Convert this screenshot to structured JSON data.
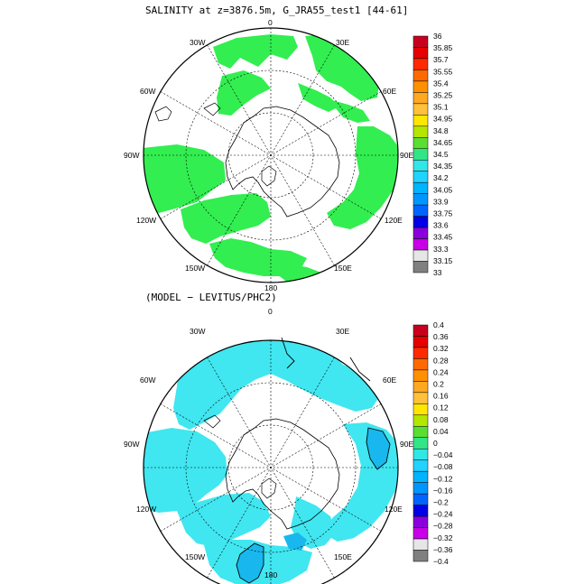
{
  "panels": [
    {
      "title": "SALINITY at z=3876.5m, G_JRA55_test1 [44-61]",
      "lon_labels": {
        "top": "0",
        "top_right": "30E",
        "right_upper": "60E",
        "right": "90E",
        "bottom_right": "120E",
        "bottom_right2": "150E",
        "bottom": "180",
        "bottom_left2": "150W",
        "bottom_left": "120W",
        "left": "90W",
        "left_upper": "60W",
        "top_left": "30W"
      },
      "colorbar": {
        "labels": [
          "36",
          "35.85",
          "35.7",
          "35.55",
          "35.4",
          "35.25",
          "35.1",
          "34.95",
          "34.8",
          "34.65",
          "34.5",
          "34.35",
          "34.2",
          "34.05",
          "33.9",
          "33.75",
          "33.6",
          "33.45",
          "33.3",
          "33.15",
          "33"
        ],
        "colors": [
          "#c8001e",
          "#e60000",
          "#ff2a00",
          "#ff6a00",
          "#ff9100",
          "#ffa820",
          "#ffc13a",
          "#ffe600",
          "#b4e600",
          "#5ade32",
          "#32e687",
          "#32e6e6",
          "#22d2ff",
          "#00b4ff",
          "#0096ff",
          "#0064ff",
          "#0000e6",
          "#8a00dc",
          "#c800e6",
          "#e6e6e6",
          "#808080"
        ]
      }
    },
    {
      "title": "(MODEL − LEVITUS/PHC2)",
      "lon_labels": {
        "top": "0",
        "top_right": "30E",
        "right_upper": "60E",
        "right": "90E",
        "bottom_right": "120E",
        "bottom_right2": "150E",
        "bottom": "180",
        "bottom_left2": "150W",
        "bottom_left": "120W",
        "left": "90W",
        "left_upper": "60W",
        "top_left": "30W"
      },
      "colorbar": {
        "labels": [
          "0.4",
          "0.36",
          "0.32",
          "0.28",
          "0.24",
          "0.2",
          "0.16",
          "0.12",
          "0.08",
          "0.04",
          "0",
          "−0.04",
          "−0.08",
          "−0.12",
          "−0.16",
          "−0.2",
          "−0.24",
          "−0.28",
          "−0.32",
          "−0.36",
          "−0.4"
        ],
        "colors": [
          "#c8001e",
          "#e60000",
          "#ff2a00",
          "#ff6a00",
          "#ff9100",
          "#ffa820",
          "#ffc13a",
          "#ffe600",
          "#b4e600",
          "#5ade32",
          "#32e687",
          "#32e6e6",
          "#22d2ff",
          "#00b4ff",
          "#0096ff",
          "#0064ff",
          "#0000e6",
          "#8a00dc",
          "#c800e6",
          "#e6e6e6",
          "#808080"
        ]
      }
    }
  ],
  "fill_colors": {
    "panel1_field": "#32ee50",
    "panel2_field": "#40e6f0",
    "panel2_deep": "#18b8ee"
  }
}
